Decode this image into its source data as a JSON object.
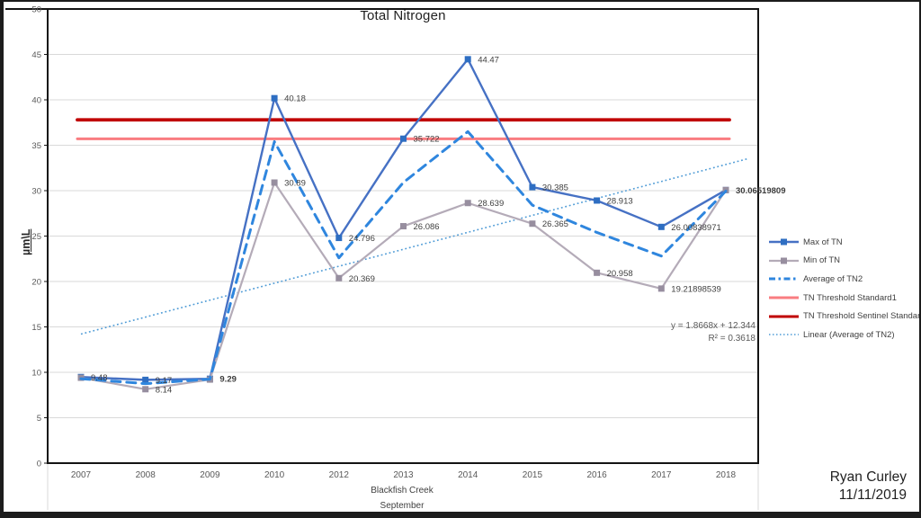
{
  "chart_data": {
    "type": "line",
    "title": "Total Nitrogen",
    "ylabel": "µm\\L",
    "xlabel": "",
    "ylim": [
      0,
      50
    ],
    "ytick_step": 5,
    "grid": true,
    "legend_position": "right",
    "categories": [
      "2007",
      "2008",
      "2009",
      "2010",
      "2012",
      "2013",
      "2014",
      "2015",
      "2016",
      "2017",
      "2018"
    ],
    "series": [
      {
        "name": "Max of TN",
        "type": "line",
        "style": "solid",
        "marker": "square",
        "color": "#4671c4",
        "marker_color": "#2e6ec2",
        "width": 2.4,
        "values": [
          9.48,
          9.17,
          9.29,
          40.18,
          24.796,
          35.722,
          44.47,
          30.385,
          28.913,
          26.00838971,
          30.06519809
        ],
        "labels": [
          "9.48",
          "9.17",
          "9.29",
          "40.18",
          "24.796",
          "35.722",
          "44.47",
          "30.385",
          "28.913",
          "26.00838971",
          "30.06519809"
        ],
        "bold_label_indices": [
          2,
          10
        ]
      },
      {
        "name": "Min of TN",
        "type": "line",
        "style": "solid",
        "marker": "square",
        "color": "#b4abb8",
        "marker_color": "#978e9f",
        "width": 2.2,
        "values": [
          9.4,
          8.14,
          9.2,
          30.89,
          20.369,
          26.086,
          28.639,
          26.365,
          20.958,
          19.21898539,
          30.07
        ],
        "labels": [
          null,
          "8.14",
          null,
          "30.89",
          "20.369",
          "26.086",
          "28.639",
          "26.365",
          "20.958",
          "19.21898539",
          null
        ],
        "bold_label_indices": []
      },
      {
        "name": "Average of TN2",
        "type": "line",
        "style": "dashed",
        "marker": "none",
        "color": "#2f86de",
        "width": 3,
        "values": [
          9.3,
          8.75,
          9.25,
          35.4,
          22.6,
          30.9,
          36.5,
          28.4,
          25.4,
          22.8,
          29.95
        ],
        "labels": [
          null,
          null,
          null,
          null,
          null,
          null,
          null,
          null,
          null,
          null,
          null
        ],
        "bold_label_indices": []
      },
      {
        "name": "TN Threshold Standard1",
        "type": "constant",
        "style": "solid",
        "color": "#f97d81",
        "width": 3,
        "value": 35.7
      },
      {
        "name": "TN Threshold Sentinel Standard",
        "type": "constant",
        "style": "solid",
        "color": "#c00000",
        "width": 3.8,
        "value": 37.8
      },
      {
        "name": "Linear (Average of TN2)",
        "type": "trend",
        "style": "dotted",
        "color": "#4e9bd6",
        "width": 1.6,
        "slope": 1.8668,
        "intercept": 12.344,
        "x_start": 1,
        "x_end": 11.35
      }
    ],
    "colors": {
      "gridline": "#d9d9d9",
      "axis_line": "#141414",
      "tick_label": "#595959",
      "data_label": "#404040"
    }
  },
  "annotations": {
    "equation": "y = 1.8668x + 12.344",
    "r_squared": "R² = 0.3618"
  },
  "footer": {
    "location": "Blackfish Creek",
    "month": "September"
  },
  "signature": {
    "name": "Ryan Curley",
    "date": "11/11/2019"
  }
}
